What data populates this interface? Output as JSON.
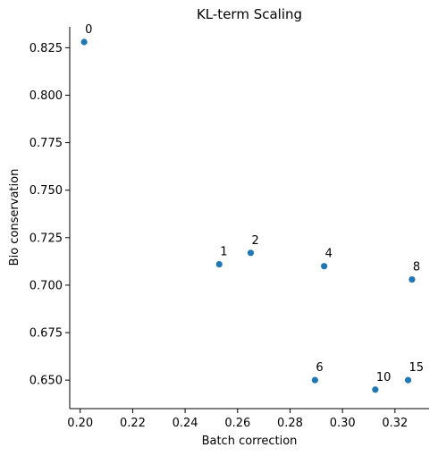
{
  "chart_data": {
    "type": "scatter",
    "title": "KL-term Scaling",
    "xlabel": "Batch correction",
    "ylabel": "Bio conservation",
    "xlim": [
      0.196,
      0.333
    ],
    "ylim": [
      0.635,
      0.836
    ],
    "xticks": [
      0.2,
      0.22,
      0.24,
      0.26,
      0.28,
      0.3,
      0.32
    ],
    "xtick_labels": [
      "0.20",
      "0.22",
      "0.24",
      "0.26",
      "0.28",
      "0.30",
      "0.32"
    ],
    "yticks": [
      0.65,
      0.675,
      0.7,
      0.725,
      0.75,
      0.775,
      0.8,
      0.825
    ],
    "ytick_labels": [
      "0.650",
      "0.675",
      "0.700",
      "0.725",
      "0.750",
      "0.775",
      "0.800",
      "0.825"
    ],
    "grid": false,
    "marker_color": "#1f77b4",
    "points": [
      {
        "label": "0",
        "x": 0.2015,
        "y": 0.828
      },
      {
        "label": "1",
        "x": 0.253,
        "y": 0.711
      },
      {
        "label": "2",
        "x": 0.265,
        "y": 0.717
      },
      {
        "label": "4",
        "x": 0.293,
        "y": 0.71
      },
      {
        "label": "8",
        "x": 0.3265,
        "y": 0.703
      },
      {
        "label": "6",
        "x": 0.2895,
        "y": 0.65
      },
      {
        "label": "10",
        "x": 0.3125,
        "y": 0.645
      },
      {
        "label": "15",
        "x": 0.325,
        "y": 0.65
      }
    ]
  }
}
